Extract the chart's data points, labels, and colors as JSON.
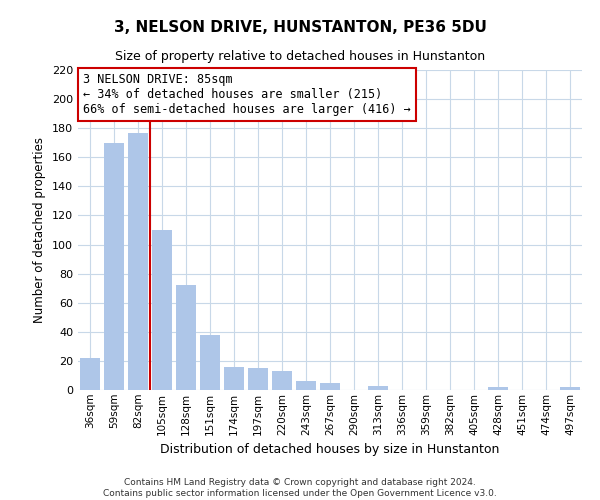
{
  "title": "3, NELSON DRIVE, HUNSTANTON, PE36 5DU",
  "subtitle": "Size of property relative to detached houses in Hunstanton",
  "xlabel": "Distribution of detached houses by size in Hunstanton",
  "ylabel": "Number of detached properties",
  "categories": [
    "36sqm",
    "59sqm",
    "82sqm",
    "105sqm",
    "128sqm",
    "151sqm",
    "174sqm",
    "197sqm",
    "220sqm",
    "243sqm",
    "267sqm",
    "290sqm",
    "313sqm",
    "336sqm",
    "359sqm",
    "382sqm",
    "405sqm",
    "428sqm",
    "451sqm",
    "474sqm",
    "497sqm"
  ],
  "values": [
    22,
    170,
    177,
    110,
    72,
    38,
    16,
    15,
    13,
    6,
    5,
    0,
    3,
    0,
    0,
    0,
    0,
    2,
    0,
    0,
    2
  ],
  "bar_color": "#aec6e8",
  "vline_color": "#cc0000",
  "annotation_title": "3 NELSON DRIVE: 85sqm",
  "annotation_line1": "← 34% of detached houses are smaller (215)",
  "annotation_line2": "66% of semi-detached houses are larger (416) →",
  "annotation_box_color": "#ffffff",
  "annotation_box_edge": "#cc0000",
  "ylim": [
    0,
    220
  ],
  "yticks": [
    0,
    20,
    40,
    60,
    80,
    100,
    120,
    140,
    160,
    180,
    200,
    220
  ],
  "footer1": "Contains HM Land Registry data © Crown copyright and database right 2024.",
  "footer2": "Contains public sector information licensed under the Open Government Licence v3.0.",
  "bg_color": "#ffffff",
  "grid_color": "#c8d8e8"
}
